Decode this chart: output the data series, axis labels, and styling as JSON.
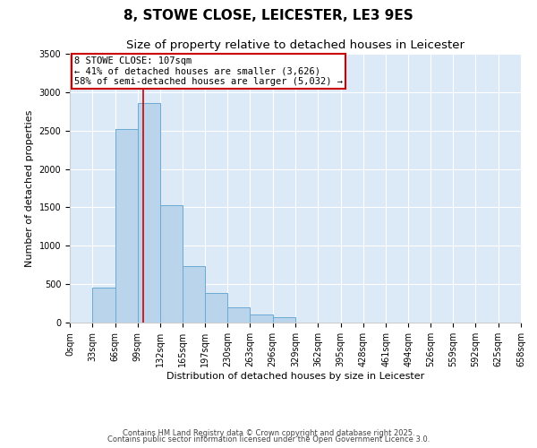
{
  "title": "8, STOWE CLOSE, LEICESTER, LE3 9ES",
  "subtitle": "Size of property relative to detached houses in Leicester",
  "xlabel": "Distribution of detached houses by size in Leicester",
  "ylabel": "Number of detached properties",
  "bar_left_edges": [
    0,
    33,
    66,
    99,
    132,
    165,
    197,
    230,
    263,
    296,
    329,
    362,
    395,
    428,
    461,
    494,
    526,
    559,
    592,
    625
  ],
  "bar_widths": [
    33,
    33,
    33,
    33,
    33,
    32,
    33,
    33,
    33,
    33,
    33,
    33,
    33,
    33,
    33,
    32,
    33,
    33,
    33,
    33
  ],
  "bar_heights": [
    5,
    450,
    2520,
    2860,
    1530,
    730,
    380,
    200,
    100,
    70,
    0,
    0,
    0,
    0,
    0,
    0,
    0,
    0,
    0,
    0
  ],
  "bar_color": "#bad4eb",
  "bar_edgecolor": "#6aaad4",
  "tick_labels": [
    "0sqm",
    "33sqm",
    "66sqm",
    "99sqm",
    "132sqm",
    "165sqm",
    "197sqm",
    "230sqm",
    "263sqm",
    "296sqm",
    "329sqm",
    "362sqm",
    "395sqm",
    "428sqm",
    "461sqm",
    "494sqm",
    "526sqm",
    "559sqm",
    "592sqm",
    "625sqm",
    "658sqm"
  ],
  "tick_positions": [
    0,
    33,
    66,
    99,
    132,
    165,
    197,
    230,
    263,
    296,
    329,
    362,
    395,
    428,
    461,
    494,
    526,
    559,
    592,
    625,
    658
  ],
  "ylim": [
    0,
    3500
  ],
  "yticks": [
    0,
    500,
    1000,
    1500,
    2000,
    2500,
    3000,
    3500
  ],
  "xlim": [
    0,
    658
  ],
  "red_line_x": 107,
  "annotation_title": "8 STOWE CLOSE: 107sqm",
  "annotation_line1": "← 41% of detached houses are smaller (3,626)",
  "annotation_line2": "58% of semi-detached houses are larger (5,032) →",
  "annotation_box_color": "#cc0000",
  "background_color": "#dce9f7",
  "grid_color": "#ffffff",
  "fig_background_color": "#ffffff",
  "footer1": "Contains HM Land Registry data © Crown copyright and database right 2025.",
  "footer2": "Contains public sector information licensed under the Open Government Licence 3.0.",
  "title_fontsize": 11,
  "subtitle_fontsize": 9.5,
  "annotation_fontsize": 7.5,
  "axis_label_fontsize": 8,
  "tick_fontsize": 7,
  "footer_fontsize": 6
}
